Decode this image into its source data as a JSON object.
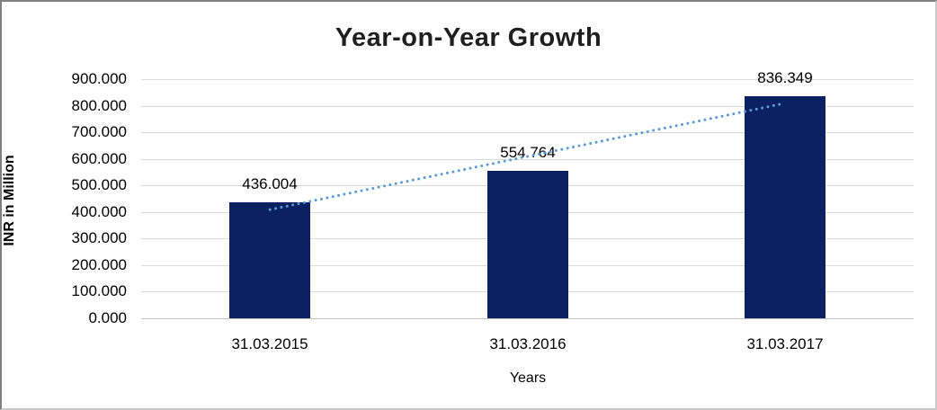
{
  "chart_data": {
    "type": "bar",
    "title": "Year-on-Year Growth",
    "xlabel": "Years",
    "ylabel": "INR in Million",
    "categories": [
      "31.03.2015",
      "31.03.2016",
      "31.03.2017"
    ],
    "values": [
      436.004,
      554.764,
      836.349
    ],
    "value_labels": [
      "436.004",
      "554.764",
      "836.349"
    ],
    "ylim": [
      0,
      900
    ],
    "ytick_step": 100,
    "ytick_labels": [
      "0.000",
      "100.000",
      "200.000",
      "300.000",
      "400.000",
      "500.000",
      "600.000",
      "700.000",
      "800.000",
      "900.000"
    ],
    "grid": true,
    "legend": "none",
    "trendline": {
      "type": "linear",
      "style": "dotted",
      "color": "#5b9bd5"
    },
    "colors": {
      "bar": "#0b2161",
      "gridline": "#d9d9d9",
      "axisline": "#bfbfbf",
      "title": "#1f1f1f",
      "label": "#000000",
      "background": "#ffffff"
    }
  }
}
